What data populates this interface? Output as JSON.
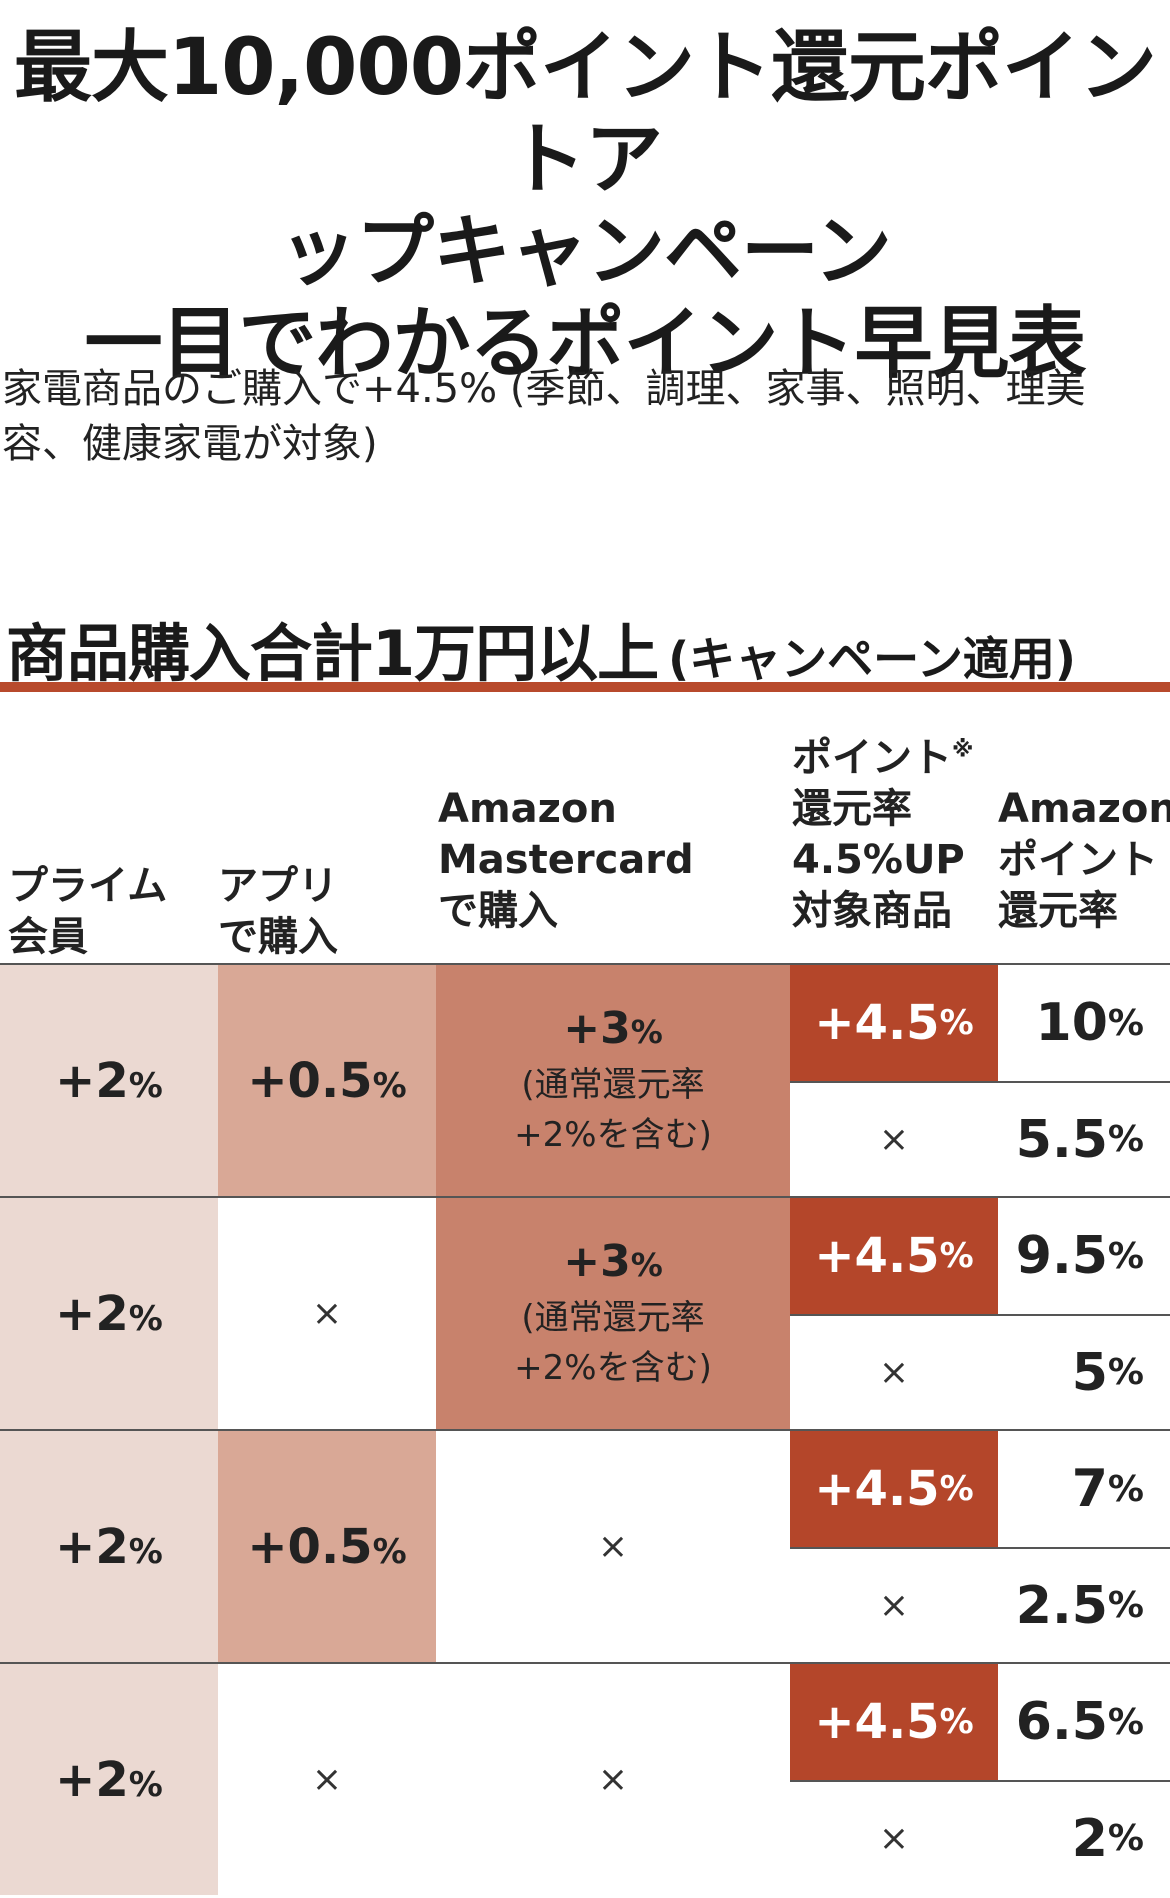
{
  "title": {
    "line1": "最大10,000ポイント還元ポイントア",
    "line2": "ップキャンペーン",
    "line3": "一目でわかるポイント早見表"
  },
  "description": "家電商品のご購入で+4.5% (季節、調理、家事、照明、理美容、健康家電が対象)",
  "section": {
    "heading": "商品購入合計1万円以上",
    "subheading": "(キャンペーン適用)"
  },
  "table": {
    "headers": {
      "prime": [
        "プライム",
        "会員"
      ],
      "app": [
        "アプリ",
        "で購入"
      ],
      "card": [
        "Amazon",
        "Mastercard",
        "で購入"
      ],
      "up": [
        "ポイント",
        "還元率",
        "4.5%UP",
        "対象商品"
      ],
      "up_mark": "※",
      "rate": [
        "Amazon",
        "ポイント",
        "還元率"
      ]
    },
    "rows": [
      {
        "prime": "+2",
        "app": "+0.5",
        "card": "+3",
        "card_note1": "(通常還元率",
        "card_note2": "+2%を含む)",
        "up": "+4.5",
        "rate_up": "10",
        "up_none": "×",
        "rate_none": "5.5"
      },
      {
        "prime": "+2",
        "app": "×",
        "card": "+3",
        "card_note1": "(通常還元率",
        "card_note2": "+2%を含む)",
        "up": "+4.5",
        "rate_up": "9.5",
        "up_none": "×",
        "rate_none": "5"
      },
      {
        "prime": "+2",
        "app": "+0.5",
        "card": "×",
        "up": "+4.5",
        "rate_up": "7",
        "up_none": "×",
        "rate_none": "2.5"
      },
      {
        "prime": "+2",
        "app": "×",
        "card": "×",
        "up": "+4.5",
        "rate_up": "6.5",
        "up_none": "×",
        "rate_none": "2"
      }
    ],
    "unit": "%"
  },
  "colors": {
    "accent": "#b4462a",
    "rule": "#b84a2c",
    "prime_bg": "#ebd9d2",
    "app_bg": "#d9a896",
    "card_bg": "#c8826c"
  }
}
